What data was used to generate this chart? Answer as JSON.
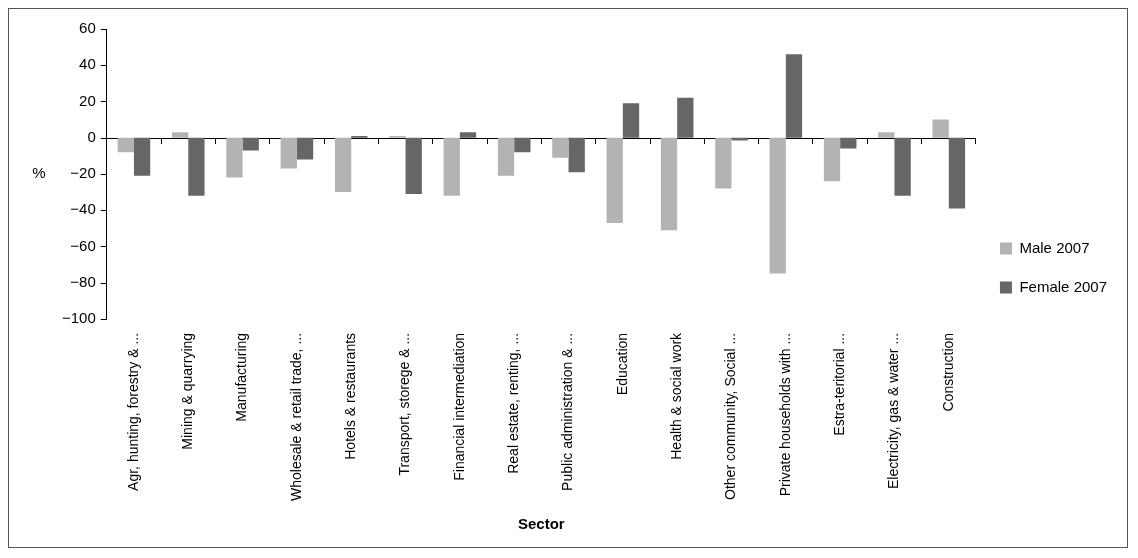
{
  "chart_data": {
    "type": "bar",
    "xlabel": "Sector",
    "ylabel": "%",
    "categories": [
      "Agr, hunting, forestry & ...",
      "Mining & quarrying",
      "Manufacturing",
      "Wholesale & retail trade, ...",
      "Hotels & restaurants",
      "Transport, storege & ...",
      "Financial intermediation",
      "Real estate, renting, ...",
      "Public administration & ...",
      "Education",
      "Health & social work",
      "Other community, Social ...",
      "Private households with ...",
      "Estra-teritorial ...",
      "Electricity, gas & water ...",
      "Construction"
    ],
    "series": [
      {
        "name": "Male 2007",
        "color": "#b3b3b3",
        "values": [
          -8,
          3,
          -22,
          -17,
          -30,
          1,
          -32,
          -21,
          -11,
          -47,
          -51,
          -28,
          -75,
          -24,
          3,
          10
        ]
      },
      {
        "name": "Female 2007",
        "color": "#666666",
        "values": [
          -21,
          -32,
          -7,
          -12,
          1,
          -31,
          3,
          -8,
          -19,
          19,
          22,
          -1.5,
          46,
          -6,
          -32,
          -39
        ]
      }
    ],
    "ylim": [
      -100,
      60
    ],
    "yticks": [
      {
        "value": -100,
        "label": "−100"
      },
      {
        "value": -80,
        "label": "−80"
      },
      {
        "value": -60,
        "label": "−60"
      },
      {
        "value": -40,
        "label": "−40"
      },
      {
        "value": -20,
        "label": "−20"
      },
      0,
      20,
      40,
      60
    ],
    "ref_lines": [
      {
        "axis": "y",
        "value": 0,
        "color": "#000000"
      }
    ],
    "grid": false,
    "legend": "right"
  }
}
